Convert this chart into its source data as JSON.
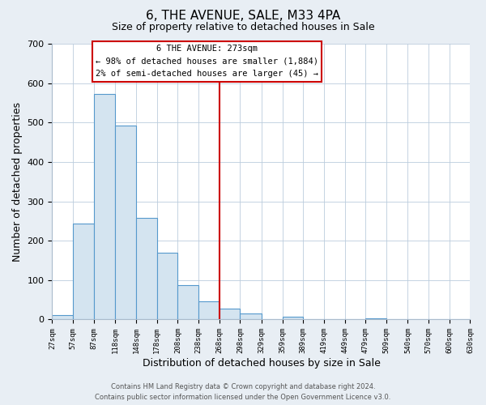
{
  "title": "6, THE AVENUE, SALE, M33 4PA",
  "subtitle": "Size of property relative to detached houses in Sale",
  "xlabel": "Distribution of detached houses by size in Sale",
  "ylabel": "Number of detached properties",
  "bar_left_edges": [
    27,
    57,
    87,
    118,
    148,
    178,
    208,
    238,
    268,
    298,
    329,
    359,
    389,
    419,
    449,
    479,
    509,
    540,
    570,
    600
  ],
  "bar_heights": [
    12,
    243,
    573,
    492,
    258,
    170,
    88,
    47,
    27,
    15,
    0,
    8,
    0,
    0,
    0,
    3,
    0,
    0,
    0,
    0
  ],
  "bar_widths": [
    30,
    30,
    31,
    30,
    30,
    30,
    30,
    30,
    30,
    31,
    30,
    30,
    30,
    30,
    30,
    30,
    31,
    30,
    30,
    30
  ],
  "bar_color": "#d4e4f0",
  "bar_edge_color": "#5599cc",
  "tick_labels": [
    "27sqm",
    "57sqm",
    "87sqm",
    "118sqm",
    "148sqm",
    "178sqm",
    "208sqm",
    "238sqm",
    "268sqm",
    "298sqm",
    "329sqm",
    "359sqm",
    "389sqm",
    "419sqm",
    "449sqm",
    "479sqm",
    "509sqm",
    "540sqm",
    "570sqm",
    "600sqm",
    "630sqm"
  ],
  "vline_x": 268,
  "vline_color": "#cc0000",
  "ylim": [
    0,
    700
  ],
  "yticks": [
    0,
    100,
    200,
    300,
    400,
    500,
    600,
    700
  ],
  "annotation_title": "6 THE AVENUE: 273sqm",
  "annotation_line1": "← 98% of detached houses are smaller (1,884)",
  "annotation_line2": "2% of semi-detached houses are larger (45) →",
  "annotation_box_facecolor": "#ffffff",
  "annotation_box_edgecolor": "#cc0000",
  "footer_line1": "Contains HM Land Registry data © Crown copyright and database right 2024.",
  "footer_line2": "Contains public sector information licensed under the Open Government Licence v3.0.",
  "fig_facecolor": "#e8eef4",
  "plot_facecolor": "#ffffff",
  "grid_color": "#bbccdd",
  "xlim": [
    27,
    630
  ]
}
